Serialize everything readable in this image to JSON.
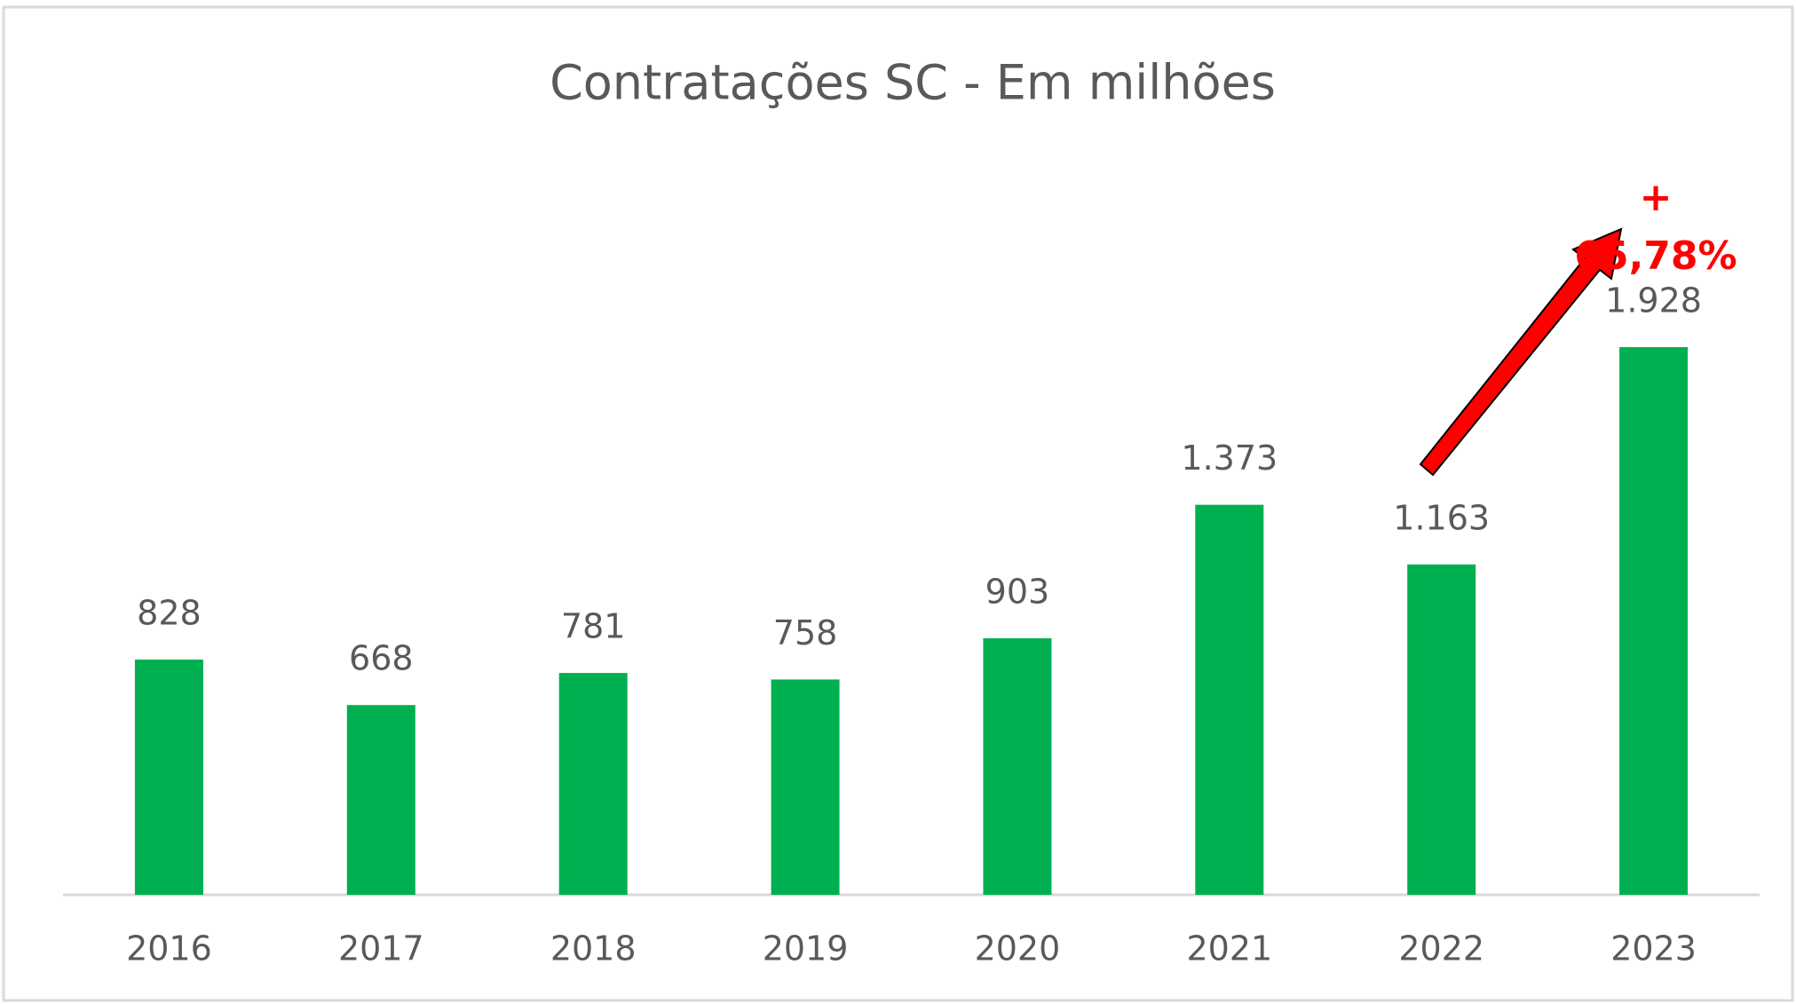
{
  "chart_data": {
    "type": "bar",
    "title": "Contratações SC - Em milhões",
    "categories": [
      "2016",
      "2017",
      "2018",
      "2019",
      "2020",
      "2021",
      "2022",
      "2023"
    ],
    "values": [
      828,
      668,
      781,
      758,
      903,
      1373,
      1163,
      1928
    ],
    "value_labels": [
      "828",
      "668",
      "781",
      "758",
      "903",
      "1.373",
      "1.163",
      "1.928"
    ],
    "color": "#00b050",
    "ylim": [
      0,
      2500
    ],
    "annotation": "+ 65,78%"
  }
}
